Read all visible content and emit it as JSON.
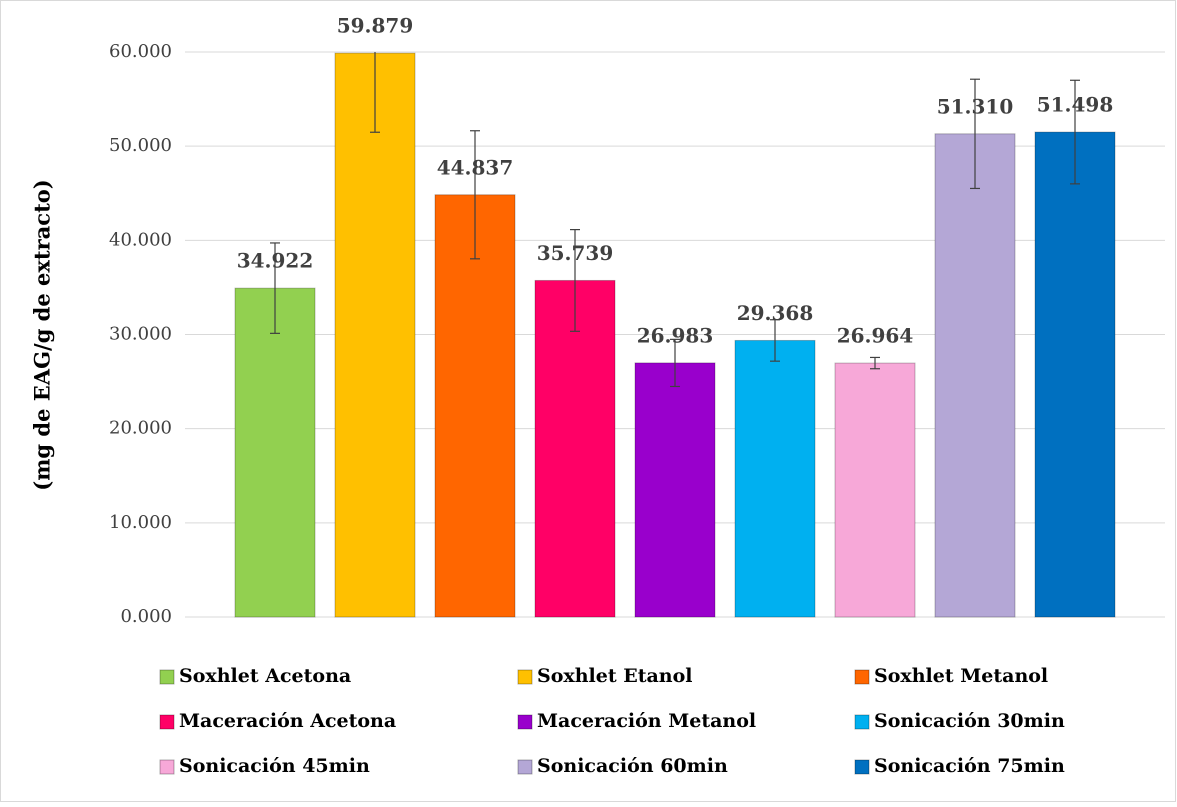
{
  "chart_data": {
    "type": "bar",
    "y_label": "(mg de EAG/g de extracto)",
    "ylim": [
      0,
      60
    ],
    "yticks": [
      {
        "value": 0,
        "label": "0.000"
      },
      {
        "value": 10,
        "label": "10.000"
      },
      {
        "value": 20,
        "label": "20.000"
      },
      {
        "value": 30,
        "label": "30.000"
      },
      {
        "value": 40,
        "label": "40.000"
      },
      {
        "value": 50,
        "label": "50.000"
      },
      {
        "value": 60,
        "label": "60.000"
      }
    ],
    "grid": true,
    "legend": "bottom",
    "series": [
      {
        "name": "Soxhlet Acetona",
        "color": "#92d050",
        "values": [
          34.922
        ],
        "value_labels": [
          "34.922"
        ],
        "errors": [
          4.8
        ]
      },
      {
        "name": "Soxhlet Etanol",
        "color": "#ffc000",
        "values": [
          59.879
        ],
        "value_labels": [
          "59.879"
        ],
        "errors": [
          8.4
        ]
      },
      {
        "name": "Soxhlet Metanol",
        "color": "#ff6600",
        "values": [
          44.837
        ],
        "value_labels": [
          "44.837"
        ],
        "errors": [
          6.8
        ]
      },
      {
        "name": "Maceración Acetona",
        "color": "#ff0066",
        "values": [
          35.739
        ],
        "value_labels": [
          "35.739"
        ],
        "errors": [
          5.4
        ]
      },
      {
        "name": "Maceración Metanol",
        "color": "#9900cc",
        "values": [
          26.983
        ],
        "value_labels": [
          "26.983"
        ],
        "errors": [
          2.5
        ]
      },
      {
        "name": "Sonicación 30min",
        "color": "#00b0f0",
        "values": [
          29.368
        ],
        "value_labels": [
          "29.368"
        ],
        "errors": [
          2.2
        ]
      },
      {
        "name": "Sonicación 45min",
        "color": "#f7a8d8",
        "values": [
          26.964
        ],
        "value_labels": [
          "26.964"
        ],
        "errors": [
          0.6
        ]
      },
      {
        "name": "Sonicación 60min",
        "color": "#b4a7d6",
        "values": [
          51.31
        ],
        "value_labels": [
          "51.310"
        ],
        "errors": [
          5.8
        ]
      },
      {
        "name": "Sonicación 75min",
        "color": "#0070c0",
        "values": [
          51.498
        ],
        "value_labels": [
          "51.498"
        ],
        "errors": [
          5.5
        ]
      }
    ]
  }
}
